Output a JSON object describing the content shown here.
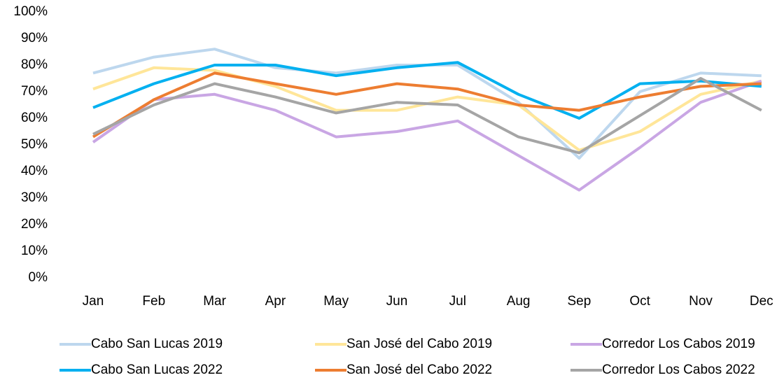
{
  "chart_data": {
    "type": "line",
    "categories": [
      "Jan",
      "Feb",
      "Mar",
      "Apr",
      "May",
      "Jun",
      "Jul",
      "Aug",
      "Sep",
      "Oct",
      "Nov",
      "Dec"
    ],
    "series": [
      {
        "name": "Cabo San Lucas 2019",
        "color": "#bdd7ee",
        "values": [
          77,
          83,
          86,
          79,
          77,
          80,
          80,
          66,
          45,
          70,
          77,
          76
        ]
      },
      {
        "name": "San José del Cabo 2019",
        "color": "#ffe699",
        "values": [
          71,
          79,
          78,
          72,
          63,
          63,
          68,
          65,
          48,
          55,
          69,
          74
        ]
      },
      {
        "name": "Corredor Los Cabos 2019",
        "color": "#c9a6e4",
        "values": [
          51,
          67,
          69,
          63,
          53,
          55,
          59,
          46,
          33,
          49,
          66,
          74
        ]
      },
      {
        "name": "Cabo San Lucas 2022",
        "color": "#00b0f0",
        "values": [
          64,
          73,
          80,
          80,
          76,
          79,
          81,
          69,
          60,
          73,
          74,
          72
        ]
      },
      {
        "name": "San José del Cabo 2022",
        "color": "#ed7d31",
        "values": [
          53,
          67,
          77,
          73,
          69,
          73,
          71,
          65,
          63,
          68,
          72,
          73
        ]
      },
      {
        "name": "Corredor Los Cabos 2022",
        "color": "#a5a5a5",
        "values": [
          54,
          65,
          73,
          68,
          62,
          66,
          65,
          53,
          47,
          61,
          75,
          63
        ]
      }
    ],
    "ylim": [
      0,
      100
    ],
    "yticks": [
      {
        "value": 0,
        "label": "0%"
      },
      {
        "value": 10,
        "label": "10%"
      },
      {
        "value": 20,
        "label": "20%"
      },
      {
        "value": 30,
        "label": "30%"
      },
      {
        "value": 40,
        "label": "40%"
      },
      {
        "value": 50,
        "label": "50%"
      },
      {
        "value": 60,
        "label": "60%"
      },
      {
        "value": 70,
        "label": "70%"
      },
      {
        "value": 80,
        "label": "80%"
      },
      {
        "value": 90,
        "label": "90%"
      },
      {
        "value": 100,
        "label": "100%"
      }
    ],
    "grid": false,
    "legend": "bottom"
  }
}
